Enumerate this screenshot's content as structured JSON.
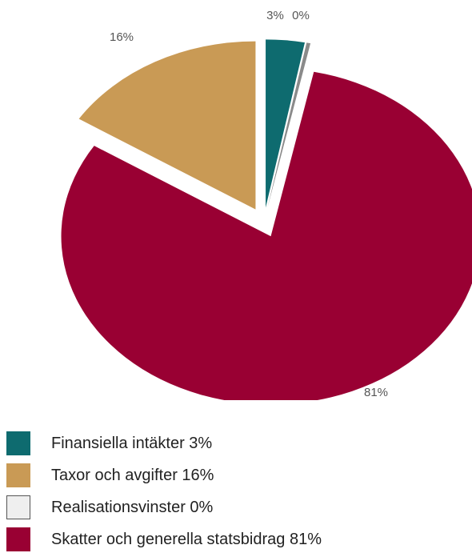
{
  "chart_data": {
    "type": "pie",
    "title": "",
    "slices": [
      {
        "label": "Finansiella intäkter",
        "value": 3,
        "data_label": "3%",
        "legend": "Finansiella intäkter 3%",
        "color": "#0e6b6f"
      },
      {
        "label": "Realisationsvinster",
        "value": 0.3,
        "data_label": "0%",
        "legend": "Realisationsvinster 0%",
        "color": "#8a8a8a",
        "legend_color": "#efefef"
      },
      {
        "label": "Skatter och generella statsbidrag",
        "value": 81,
        "data_label": "81%",
        "legend": "Skatter och generella statsbidrag 81%",
        "color": "#990033"
      },
      {
        "label": "Taxor och avgifter",
        "value": 16,
        "data_label": "16%",
        "legend": "Taxor och avgifter 16%",
        "color": "#c99a55"
      }
    ],
    "legend_order": [
      0,
      3,
      1,
      2
    ],
    "legend_placement": "bottom-left",
    "exploded": true
  }
}
